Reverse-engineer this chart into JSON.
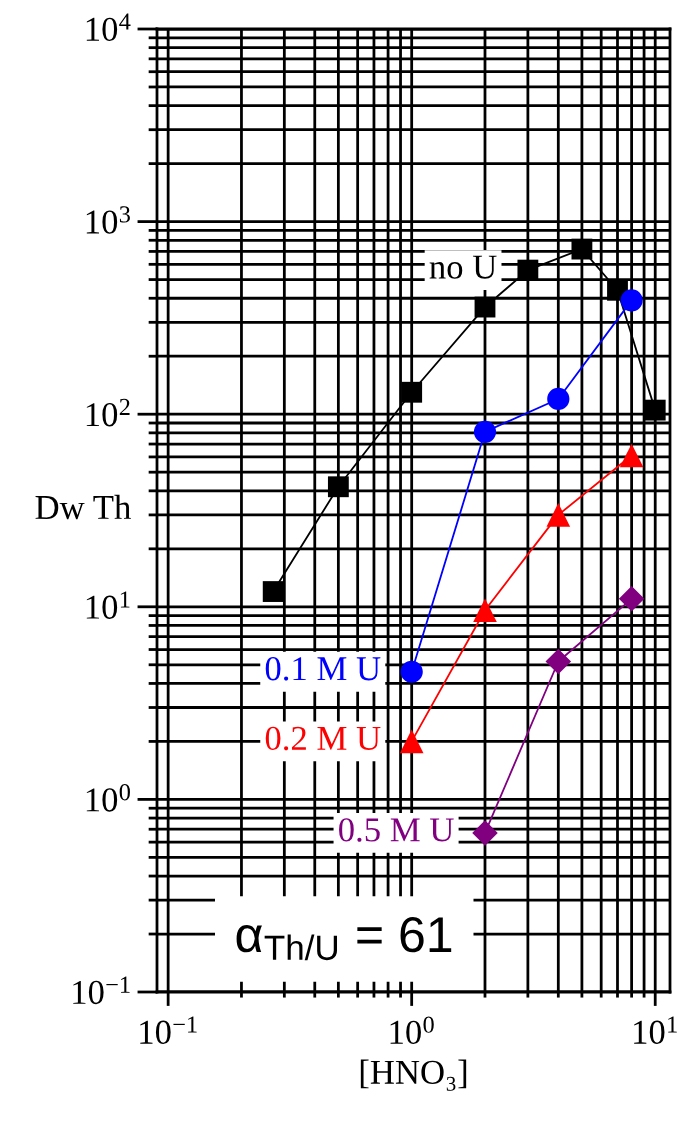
{
  "chart_data": {
    "type": "line",
    "xlabel": "[HNO₃]",
    "ylabel": "Dw Th",
    "log": "xy",
    "grid": true,
    "xlim": [
      0.09,
      11.5
    ],
    "ylim": [
      0.1,
      10000
    ],
    "xticks": [
      {
        "value": 0.1,
        "label": "10$^{−1}$"
      },
      {
        "value": 0.2,
        "label": null
      },
      {
        "value": 0.3,
        "label": null
      },
      {
        "value": 0.4,
        "label": null
      },
      {
        "value": 0.5,
        "label": null
      },
      {
        "value": 0.6,
        "label": null
      },
      {
        "value": 0.7,
        "label": null
      },
      {
        "value": 0.8,
        "label": null
      },
      {
        "value": 0.9,
        "label": null
      },
      {
        "value": 1,
        "label": "10$^{0}$"
      },
      {
        "value": 2,
        "label": null
      },
      {
        "value": 3,
        "label": null
      },
      {
        "value": 4,
        "label": null
      },
      {
        "value": 5,
        "label": null
      },
      {
        "value": 6,
        "label": null
      },
      {
        "value": 7,
        "label": null
      },
      {
        "value": 8,
        "label": null
      },
      {
        "value": 9,
        "label": null
      },
      {
        "value": 10,
        "label": "10$^{1}$"
      }
    ],
    "yticks": [
      {
        "value": 0.1,
        "label": "10$^{−1}$"
      },
      {
        "value": 0.2,
        "label": null
      },
      {
        "value": 0.3,
        "label": null
      },
      {
        "value": 0.4,
        "label": null
      },
      {
        "value": 0.5,
        "label": null
      },
      {
        "value": 0.6,
        "label": null
      },
      {
        "value": 0.7,
        "label": null
      },
      {
        "value": 0.8,
        "label": null
      },
      {
        "value": 0.9,
        "label": null
      },
      {
        "value": 1,
        "label": "10$^{0}$"
      },
      {
        "value": 2,
        "label": null
      },
      {
        "value": 3,
        "label": null
      },
      {
        "value": 4,
        "label": null
      },
      {
        "value": 5,
        "label": null
      },
      {
        "value": 6,
        "label": null
      },
      {
        "value": 7,
        "label": null
      },
      {
        "value": 8,
        "label": null
      },
      {
        "value": 9,
        "label": null
      },
      {
        "value": 10,
        "label": "10$^{1}$"
      },
      {
        "value": 20,
        "label": null
      },
      {
        "value": 30,
        "label": null
      },
      {
        "value": 40,
        "label": null
      },
      {
        "value": 50,
        "label": null
      },
      {
        "value": 60,
        "label": null
      },
      {
        "value": 70,
        "label": null
      },
      {
        "value": 80,
        "label": null
      },
      {
        "value": 90,
        "label": null
      },
      {
        "value": 100,
        "label": "10$^{2}$"
      },
      {
        "value": 200,
        "label": null
      },
      {
        "value": 300,
        "label": null
      },
      {
        "value": 400,
        "label": null
      },
      {
        "value": 500,
        "label": null
      },
      {
        "value": 600,
        "label": null
      },
      {
        "value": 700,
        "label": null
      },
      {
        "value": 800,
        "label": null
      },
      {
        "value": 900,
        "label": null
      },
      {
        "value": 1000,
        "label": "10$^{3}$"
      },
      {
        "value": 2000,
        "label": null
      },
      {
        "value": 3000,
        "label": null
      },
      {
        "value": 4000,
        "label": null
      },
      {
        "value": 5000,
        "label": null
      },
      {
        "value": 6000,
        "label": null
      },
      {
        "value": 7000,
        "label": null
      },
      {
        "value": 8000,
        "label": null
      },
      {
        "value": 9000,
        "label": null
      },
      {
        "value": 10000,
        "label": "10$^{4}$"
      }
    ],
    "series": [
      {
        "name": "no U",
        "color": "#000000",
        "marker": "square",
        "x": [
          0.27,
          0.5,
          1,
          2,
          3,
          5,
          7,
          10
        ],
        "values": [
          12,
          42,
          130,
          360,
          560,
          720,
          440,
          105
        ]
      },
      {
        "name": "0.1 M U",
        "color": "#0000ff",
        "marker": "circle",
        "x": [
          1,
          2,
          4,
          8
        ],
        "values": [
          4.6,
          81,
          120,
          390
        ]
      },
      {
        "name": "0.2 M U",
        "color": "#ff0000",
        "marker": "triangle",
        "x": [
          1,
          2,
          4,
          8
        ],
        "values": [
          2.0,
          9.6,
          30,
          61
        ]
      },
      {
        "name": "0.5 M U",
        "color": "#800080",
        "marker": "diamond",
        "x": [
          2,
          4,
          8
        ],
        "values": [
          0.67,
          5.2,
          11
        ]
      }
    ],
    "annotations": [
      "α$_{Th/U}$ = 61"
    ]
  }
}
